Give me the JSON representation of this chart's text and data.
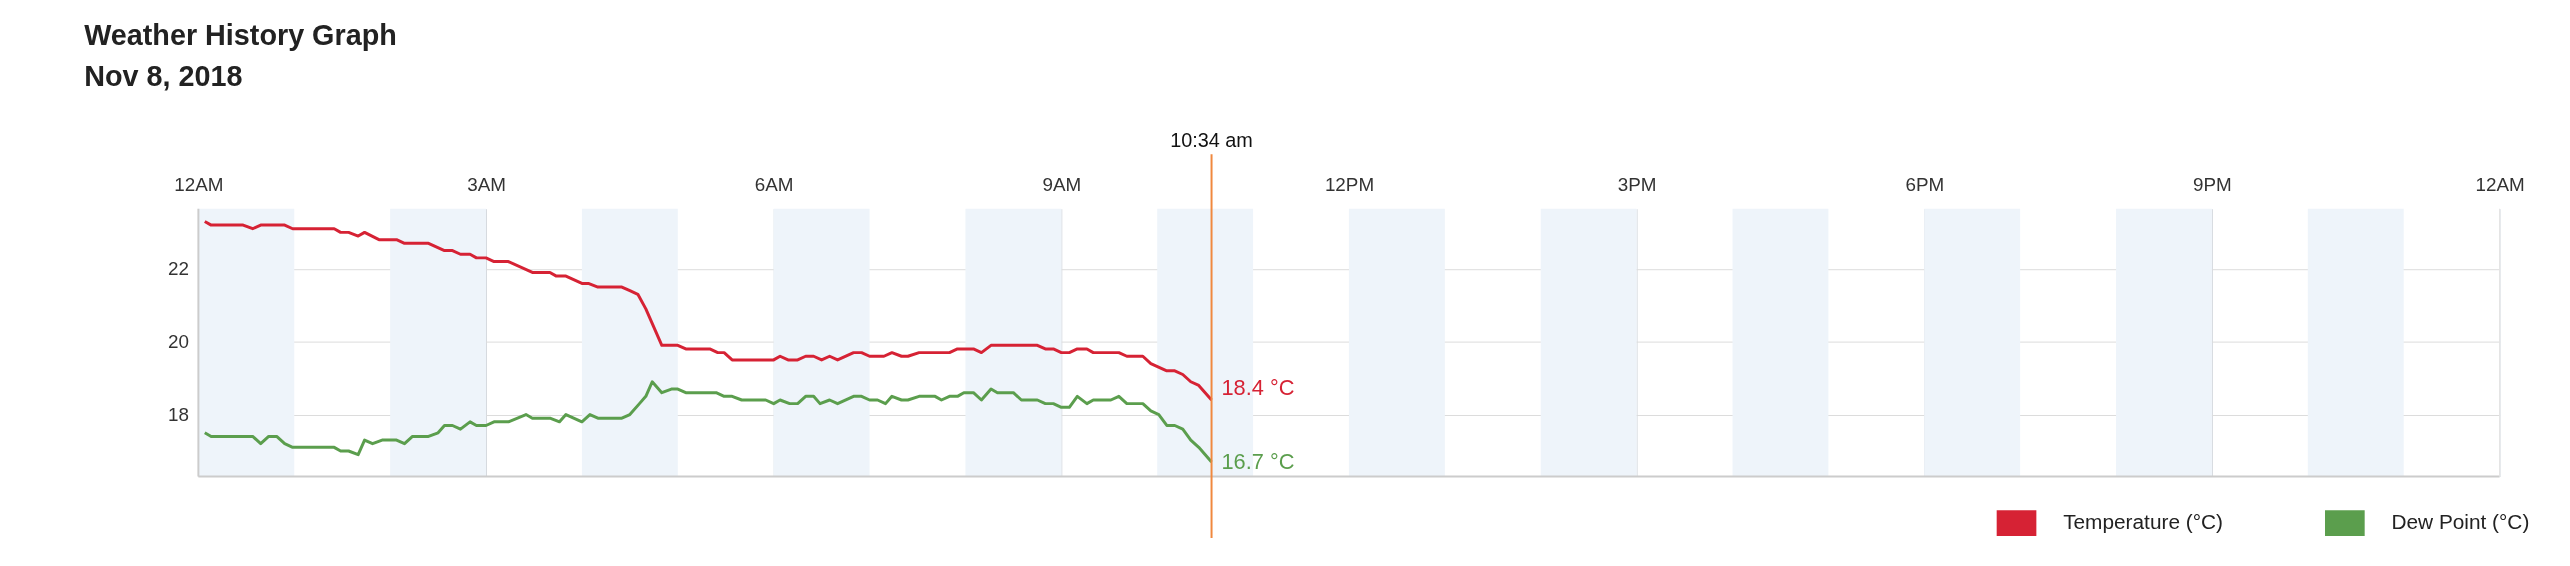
{
  "chart_data": {
    "type": "line",
    "title": "Weather History Graph",
    "subtitle": "Nov 8, 2018",
    "xlim": [
      "2018-11-08T00:00",
      "2018-11-09T00:00"
    ],
    "xticks": [
      {
        "value": "2018-11-08T00:00",
        "label": "12AM"
      },
      {
        "value": "2018-11-08T03:00",
        "label": "3AM"
      },
      {
        "value": "2018-11-08T06:00",
        "label": "6AM"
      },
      {
        "value": "2018-11-08T09:00",
        "label": "9AM"
      },
      {
        "value": "2018-11-08T12:00",
        "label": "12PM"
      },
      {
        "value": "2018-11-08T15:00",
        "label": "3PM"
      },
      {
        "value": "2018-11-08T18:00",
        "label": "6PM"
      },
      {
        "value": "2018-11-08T21:00",
        "label": "9PM"
      },
      {
        "value": "2018-11-09T00:00",
        "label": "12AM"
      }
    ],
    "ylim": [
      16.3,
      23.65
    ],
    "yticks": [
      18,
      20,
      22
    ],
    "grid": true,
    "legend": "bottom right",
    "marker": "none",
    "line_style": "solid",
    "series": [
      {
        "name": "Temperature (°C)",
        "color": "#d62234",
        "x": [
          "2018-11-08T00:04",
          "2018-11-08T00:08",
          "2018-11-08T00:28",
          "2018-11-08T00:34",
          "2018-11-08T00:39",
          "2018-11-08T00:54",
          "2018-11-08T00:59",
          "2018-11-08T01:25",
          "2018-11-08T01:29",
          "2018-11-08T01:34",
          "2018-11-08T01:40",
          "2018-11-08T01:44",
          "2018-11-08T01:53",
          "2018-11-08T02:04",
          "2018-11-08T02:09",
          "2018-11-08T02:24",
          "2018-11-08T02:34",
          "2018-11-08T02:39",
          "2018-11-08T02:44",
          "2018-11-08T02:50",
          "2018-11-08T02:54",
          "2018-11-08T03:00",
          "2018-11-08T03:05",
          "2018-11-08T03:14",
          "2018-11-08T03:29",
          "2018-11-08T03:40",
          "2018-11-08T03:44",
          "2018-11-08T03:50",
          "2018-11-08T04:00",
          "2018-11-08T04:04",
          "2018-11-08T04:10",
          "2018-11-08T04:25",
          "2018-11-08T04:30",
          "2018-11-08T04:35",
          "2018-11-08T04:40",
          "2018-11-08T04:45",
          "2018-11-08T04:50",
          "2018-11-08T05:00",
          "2018-11-08T05:05",
          "2018-11-08T05:20",
          "2018-11-08T05:25",
          "2018-11-08T05:29",
          "2018-11-08T05:34",
          "2018-11-08T05:40",
          "2018-11-08T06:00",
          "2018-11-08T06:04",
          "2018-11-08T06:09",
          "2018-11-08T06:15",
          "2018-11-08T06:20",
          "2018-11-08T06:25",
          "2018-11-08T06:30",
          "2018-11-08T06:35",
          "2018-11-08T06:40",
          "2018-11-08T06:50",
          "2018-11-08T06:55",
          "2018-11-08T07:00",
          "2018-11-08T07:09",
          "2018-11-08T07:14",
          "2018-11-08T07:20",
          "2018-11-08T07:24",
          "2018-11-08T07:31",
          "2018-11-08T07:50",
          "2018-11-08T07:55",
          "2018-11-08T08:05",
          "2018-11-08T08:10",
          "2018-11-08T08:16",
          "2018-11-08T08:45",
          "2018-11-08T08:50",
          "2018-11-08T08:55",
          "2018-11-08T09:00",
          "2018-11-08T09:05",
          "2018-11-08T09:10",
          "2018-11-08T09:16",
          "2018-11-08T09:20",
          "2018-11-08T09:36",
          "2018-11-08T09:41",
          "2018-11-08T09:51",
          "2018-11-08T09:56",
          "2018-11-08T10:06",
          "2018-11-08T10:11",
          "2018-11-08T10:16",
          "2018-11-08T10:21",
          "2018-11-08T10:26",
          "2018-11-08T10:34"
        ],
        "values": [
          23.3,
          23.2,
          23.2,
          23.1,
          23.2,
          23.2,
          23.1,
          23.1,
          23.0,
          23.0,
          22.9,
          23.0,
          22.8,
          22.8,
          22.7,
          22.7,
          22.5,
          22.5,
          22.4,
          22.4,
          22.3,
          22.3,
          22.2,
          22.2,
          21.9,
          21.9,
          21.8,
          21.8,
          21.6,
          21.6,
          21.5,
          21.5,
          21.4,
          21.3,
          20.9,
          20.4,
          19.9,
          19.9,
          19.8,
          19.8,
          19.7,
          19.7,
          19.5,
          19.5,
          19.5,
          19.6,
          19.5,
          19.5,
          19.6,
          19.6,
          19.5,
          19.6,
          19.5,
          19.7,
          19.7,
          19.6,
          19.6,
          19.7,
          19.6,
          19.6,
          19.7,
          19.7,
          19.8,
          19.8,
          19.7,
          19.9,
          19.9,
          19.8,
          19.8,
          19.7,
          19.7,
          19.8,
          19.8,
          19.7,
          19.7,
          19.6,
          19.6,
          19.4,
          19.2,
          19.2,
          19.1,
          18.9,
          18.8,
          18.4
        ]
      },
      {
        "name": "Dew Point (°C)",
        "color": "#5b9e4d",
        "x": [
          "2018-11-08T00:04",
          "2018-11-08T00:08",
          "2018-11-08T00:34",
          "2018-11-08T00:39",
          "2018-11-08T00:44",
          "2018-11-08T00:49",
          "2018-11-08T00:54",
          "2018-11-08T00:59",
          "2018-11-08T01:25",
          "2018-11-08T01:29",
          "2018-11-08T01:34",
          "2018-11-08T01:40",
          "2018-11-08T01:44",
          "2018-11-08T01:49",
          "2018-11-08T01:55",
          "2018-11-08T02:04",
          "2018-11-08T02:09",
          "2018-11-08T02:14",
          "2018-11-08T02:24",
          "2018-11-08T02:30",
          "2018-11-08T02:34",
          "2018-11-08T02:39",
          "2018-11-08T02:44",
          "2018-11-08T02:50",
          "2018-11-08T02:54",
          "2018-11-08T03:00",
          "2018-11-08T03:05",
          "2018-11-08T03:14",
          "2018-11-08T03:25",
          "2018-11-08T03:29",
          "2018-11-08T03:40",
          "2018-11-08T03:46",
          "2018-11-08T03:50",
          "2018-11-08T04:00",
          "2018-11-08T04:05",
          "2018-11-08T04:10",
          "2018-11-08T04:25",
          "2018-11-08T04:30",
          "2018-11-08T04:36",
          "2018-11-08T04:40",
          "2018-11-08T04:44",
          "2018-11-08T04:50",
          "2018-11-08T04:56",
          "2018-11-08T05:00",
          "2018-11-08T05:05",
          "2018-11-08T05:24",
          "2018-11-08T05:29",
          "2018-11-08T05:34",
          "2018-11-08T05:40",
          "2018-11-08T05:55",
          "2018-11-08T06:00",
          "2018-11-08T06:04",
          "2018-11-08T06:10",
          "2018-11-08T06:15",
          "2018-11-08T06:20",
          "2018-11-08T06:25",
          "2018-11-08T06:29",
          "2018-11-08T06:35",
          "2018-11-08T06:40",
          "2018-11-08T06:50",
          "2018-11-08T06:55",
          "2018-11-08T07:00",
          "2018-11-08T07:05",
          "2018-11-08T07:10",
          "2018-11-08T07:14",
          "2018-11-08T07:20",
          "2018-11-08T07:24",
          "2018-11-08T07:31",
          "2018-11-08T07:41",
          "2018-11-08T07:45",
          "2018-11-08T07:50",
          "2018-11-08T07:55",
          "2018-11-08T07:59",
          "2018-11-08T08:05",
          "2018-11-08T08:10",
          "2018-11-08T08:16",
          "2018-11-08T08:20",
          "2018-11-08T08:30",
          "2018-11-08T08:35",
          "2018-11-08T08:45",
          "2018-11-08T08:50",
          "2018-11-08T08:55",
          "2018-11-08T09:00",
          "2018-11-08T09:05",
          "2018-11-08T09:10",
          "2018-11-08T09:16",
          "2018-11-08T09:20",
          "2018-11-08T09:31",
          "2018-11-08T09:36",
          "2018-11-08T09:41",
          "2018-11-08T09:51",
          "2018-11-08T09:56",
          "2018-11-08T10:01",
          "2018-11-08T10:06",
          "2018-11-08T10:11",
          "2018-11-08T10:16",
          "2018-11-08T10:21",
          "2018-11-08T10:26",
          "2018-11-08T10:34"
        ],
        "values": [
          17.5,
          17.4,
          17.4,
          17.2,
          17.4,
          17.4,
          17.2,
          17.1,
          17.1,
          17.0,
          17.0,
          16.9,
          17.3,
          17.2,
          17.3,
          17.3,
          17.2,
          17.4,
          17.4,
          17.5,
          17.7,
          17.7,
          17.6,
          17.8,
          17.7,
          17.7,
          17.8,
          17.8,
          18.0,
          17.9,
          17.9,
          17.8,
          18.0,
          17.8,
          18.0,
          17.9,
          17.9,
          18.0,
          18.3,
          18.5,
          18.9,
          18.6,
          18.7,
          18.7,
          18.6,
          18.6,
          18.5,
          18.5,
          18.4,
          18.4,
          18.3,
          18.4,
          18.3,
          18.3,
          18.5,
          18.5,
          18.3,
          18.4,
          18.3,
          18.5,
          18.5,
          18.4,
          18.4,
          18.3,
          18.5,
          18.4,
          18.4,
          18.5,
          18.5,
          18.4,
          18.5,
          18.5,
          18.6,
          18.6,
          18.4,
          18.7,
          18.6,
          18.6,
          18.4,
          18.4,
          18.3,
          18.3,
          18.2,
          18.2,
          18.5,
          18.3,
          18.4,
          18.4,
          18.5,
          18.3,
          18.3,
          18.1,
          18.0,
          17.7,
          17.7,
          17.6,
          17.3,
          17.1,
          16.7
        ]
      }
    ],
    "annotations": [
      {
        "text": "18.4 °C",
        "x": "2018-11-08T10:34",
        "y": 18.4
      },
      {
        "text": "16.7 °C",
        "x": "2018-11-08T10:34",
        "y": 16.7
      }
    ],
    "ref_lines": [
      {
        "axis": "x",
        "value": "2018-11-08T10:34",
        "label": "10:34 am",
        "color": "#f0883e"
      }
    ],
    "bands": [
      {
        "axis": "x",
        "from": "2018-11-08T00:00",
        "to": "2018-11-08T01:00",
        "color": "#eef4fa"
      },
      {
        "axis": "x",
        "from": "2018-11-08T02:00",
        "to": "2018-11-08T03:00",
        "color": "#eef4fa"
      },
      {
        "axis": "x",
        "from": "2018-11-08T04:00",
        "to": "2018-11-08T05:00",
        "color": "#eef4fa"
      },
      {
        "axis": "x",
        "from": "2018-11-08T06:00",
        "to": "2018-11-08T07:00",
        "color": "#eef4fa"
      },
      {
        "axis": "x",
        "from": "2018-11-08T08:00",
        "to": "2018-11-08T09:00",
        "color": "#eef4fa"
      },
      {
        "axis": "x",
        "from": "2018-11-08T10:00",
        "to": "2018-11-08T11:00",
        "color": "#eef4fa"
      },
      {
        "axis": "x",
        "from": "2018-11-08T12:00",
        "to": "2018-11-08T13:00",
        "color": "#eef4fa"
      },
      {
        "axis": "x",
        "from": "2018-11-08T14:00",
        "to": "2018-11-08T15:00",
        "color": "#eef4fa"
      },
      {
        "axis": "x",
        "from": "2018-11-08T16:00",
        "to": "2018-11-08T17:00",
        "color": "#eef4fa"
      },
      {
        "axis": "x",
        "from": "2018-11-08T18:00",
        "to": "2018-11-08T19:00",
        "color": "#eef4fa"
      },
      {
        "axis": "x",
        "from": "2018-11-08T20:00",
        "to": "2018-11-08T21:00",
        "color": "#eef4fa"
      },
      {
        "axis": "x",
        "from": "2018-11-08T22:00",
        "to": "2018-11-08T23:00",
        "color": "#eef4fa"
      }
    ]
  }
}
